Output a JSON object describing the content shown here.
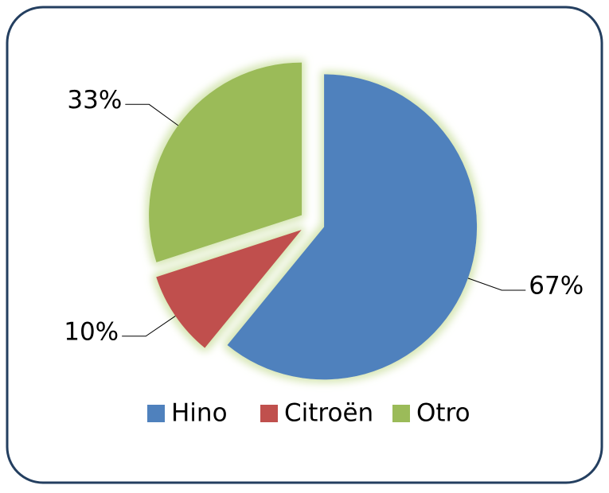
{
  "chart_data": {
    "type": "pie",
    "categories": [
      "Hino",
      "Citroën",
      "Otro"
    ],
    "values": [
      67,
      10,
      33
    ],
    "value_labels": [
      "67%",
      "10%",
      "33%"
    ],
    "colors": [
      "#4f81bd",
      "#c0504d",
      "#9bbb59"
    ],
    "legend": "bottom"
  }
}
